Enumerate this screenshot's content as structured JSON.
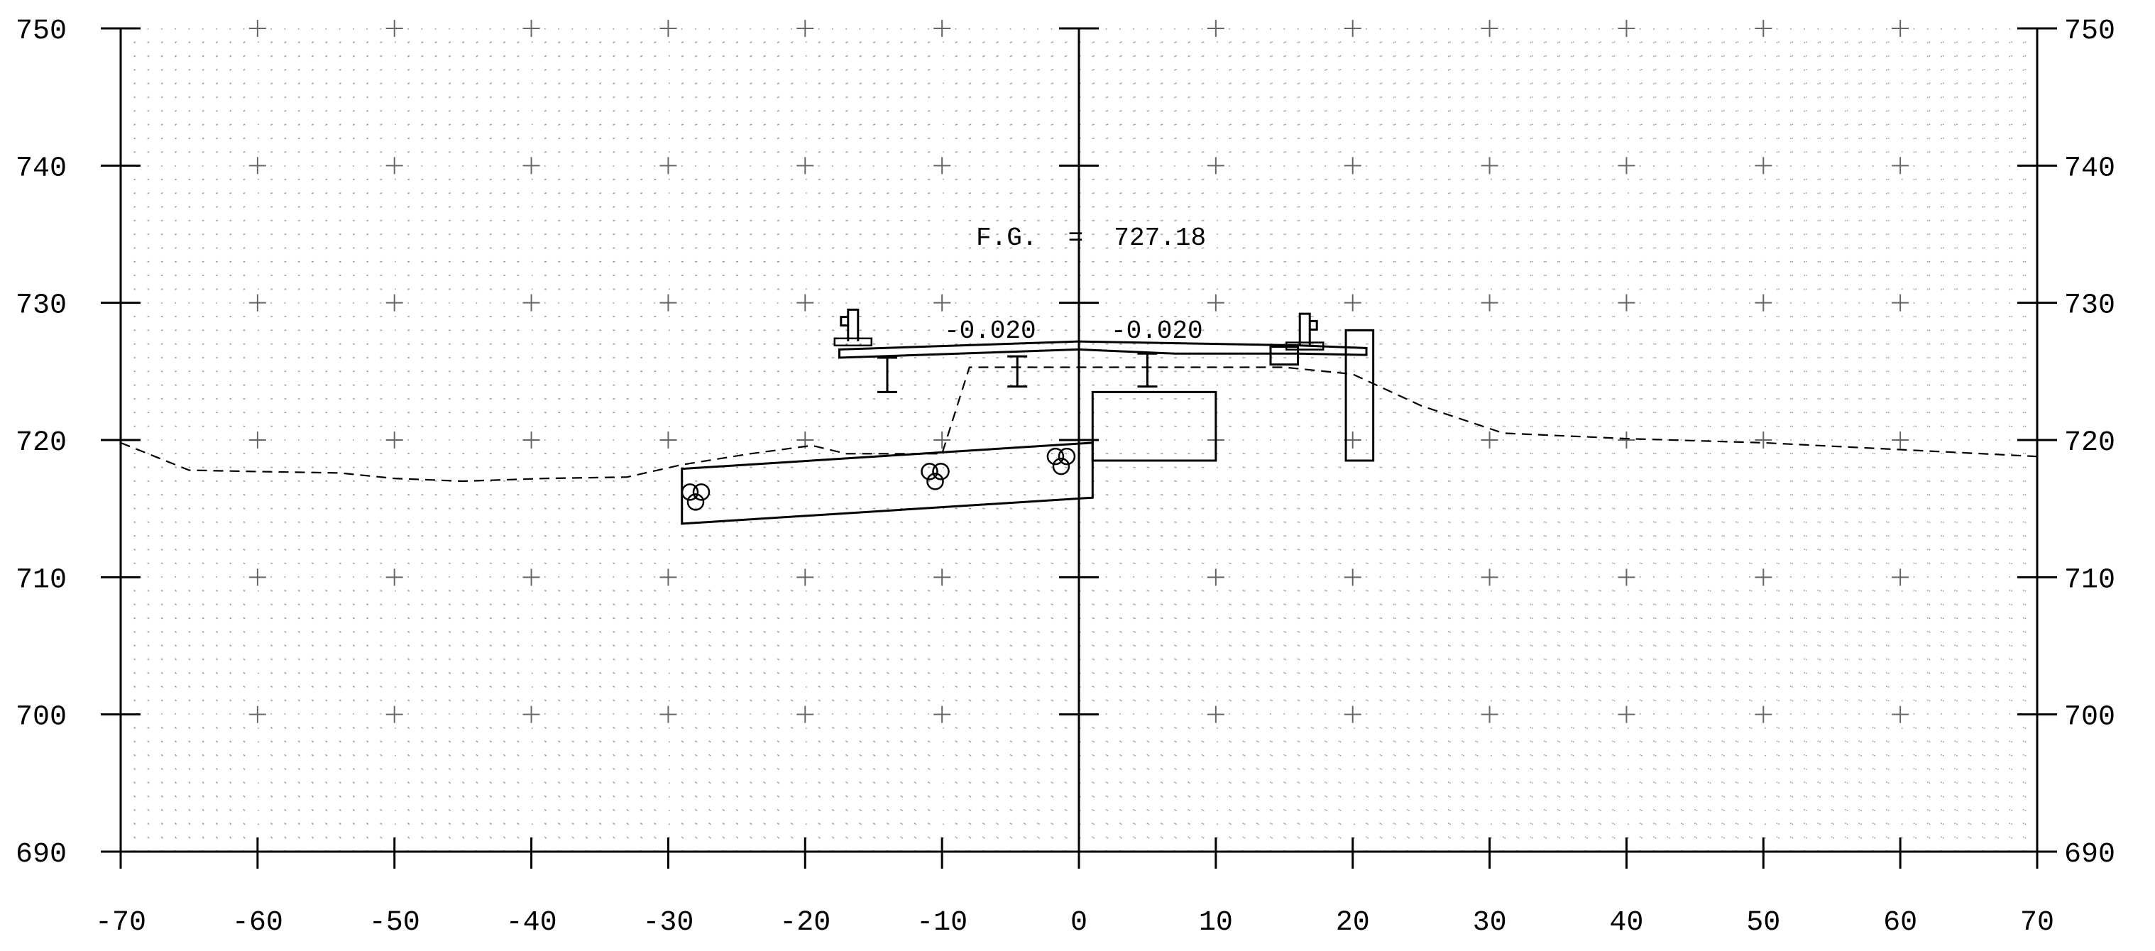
{
  "chart_data": {
    "type": "cross-section",
    "xlim": [
      -70,
      70
    ],
    "ylim": [
      690,
      750
    ],
    "x_ticks": [
      -70,
      -60,
      -50,
      -40,
      -30,
      -20,
      -10,
      0,
      10,
      20,
      30,
      40,
      50,
      60,
      70
    ],
    "x_tick_labels": [
      "-70",
      "-60",
      "-50",
      "-40",
      "-30",
      "-20",
      "-10",
      "0",
      "10",
      "20",
      "30",
      "40",
      "50",
      "60",
      "70"
    ],
    "y_ticks": [
      690,
      700,
      710,
      720,
      730,
      740,
      750
    ],
    "y_tick_labels": [
      "690",
      "700",
      "710",
      "720",
      "730",
      "740",
      "750"
    ],
    "grid": "dotted",
    "annotations": {
      "finished_grade": "F.G.  =  727.18",
      "slope_left": "-0.020",
      "slope_right": "-0.020"
    },
    "existing_ground": [
      [
        -70,
        719.8
      ],
      [
        -65,
        717.8
      ],
      [
        -60,
        717.7
      ],
      [
        -54,
        717.6
      ],
      [
        -50,
        717.2
      ],
      [
        -45,
        717.0
      ],
      [
        -39,
        717.2
      ],
      [
        -33,
        717.3
      ],
      [
        -29,
        718.2
      ],
      [
        -24,
        719.0
      ],
      [
        -19.5,
        719.6
      ],
      [
        -17,
        719.0
      ],
      [
        -10,
        719.0
      ],
      [
        -8,
        725.3
      ],
      [
        10,
        725.3
      ],
      [
        15,
        725.3
      ],
      [
        20,
        724.8
      ],
      [
        25,
        722.5
      ],
      [
        31,
        720.5
      ],
      [
        40,
        720.1
      ],
      [
        50,
        719.8
      ],
      [
        60,
        719.3
      ],
      [
        70,
        718.8
      ]
    ],
    "shapes": {
      "deck": [
        [
          -17.5,
          726.0
        ],
        [
          -17.5,
          726.6
        ],
        [
          0,
          727.18
        ],
        [
          16,
          726.9
        ],
        [
          21,
          726.7
        ],
        [
          21,
          726.2
        ],
        [
          16,
          726.3
        ],
        [
          7,
          726.3
        ],
        [
          0,
          726.6
        ],
        [
          -17.5,
          726.0
        ]
      ],
      "girder_left": {
        "x": -14,
        "top": 726.0,
        "bottom": 723.5
      },
      "girder_mid": {
        "x": -4.5,
        "top": 726.1,
        "bottom": 723.9
      },
      "girder_right": {
        "x": 5,
        "top": 726.3,
        "bottom": 723.9
      },
      "barrier_left": {
        "x": -16.5,
        "bottom": 727.2,
        "top": 729.5
      },
      "barrier_right": {
        "x": 16.5,
        "bottom": 726.9,
        "top": 729.2
      },
      "curb_right": [
        [
          14,
          725.5
        ],
        [
          16,
          725.5
        ],
        [
          16,
          726.8
        ],
        [
          14,
          726.8
        ]
      ],
      "footing": [
        [
          -29,
          717.9
        ],
        [
          1,
          719.8
        ],
        [
          1,
          715.8
        ],
        [
          -29,
          713.9
        ]
      ],
      "cap": [
        [
          1,
          723.5
        ],
        [
          10,
          723.5
        ],
        [
          10,
          718.5
        ],
        [
          1,
          718.5
        ]
      ],
      "abutment_wall": [
        [
          19.5,
          728.0
        ],
        [
          21.5,
          728.0
        ],
        [
          21.5,
          718.5
        ],
        [
          19.5,
          718.5
        ]
      ],
      "piles": [
        {
          "x": -28,
          "y": 716.0
        },
        {
          "x": -10.5,
          "y": 717.5
        },
        {
          "x": -1.3,
          "y": 718.6
        }
      ]
    }
  }
}
